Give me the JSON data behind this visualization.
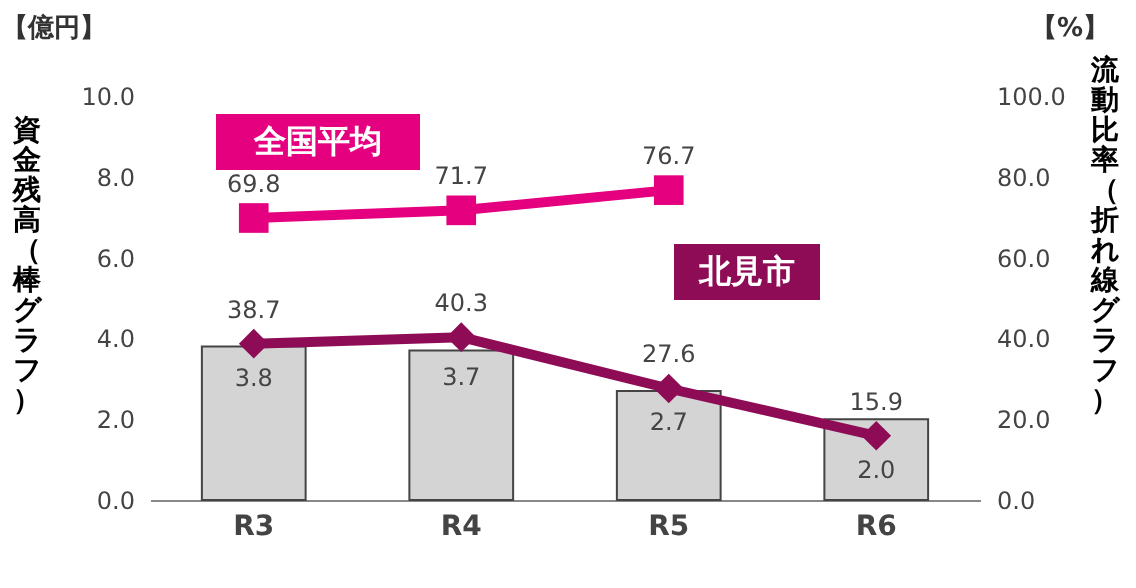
{
  "chart_data": {
    "type": "bar",
    "categories": [
      "R3",
      "R4",
      "R5",
      "R6"
    ],
    "ylabel": "資金残高（棒グラフ）",
    "y2label": "流動比率（折れ線グラフ）",
    "annotations": [
      "【億円】",
      "【%】"
    ],
    "values": [
      3.8,
      3.7,
      2.7,
      2.0
    ],
    "value_labels": [
      "3.8",
      "3.7",
      "2.7",
      "2.0"
    ],
    "color": "#d4d4d4",
    "data_labels": true,
    "ylim": [
      0,
      10
    ],
    "yticks": [
      {
        "value": 0,
        "label": "0.0"
      },
      {
        "value": 2,
        "label": "2.0"
      },
      {
        "value": 4,
        "label": "4.0"
      },
      {
        "value": 6,
        "label": "6.0"
      },
      {
        "value": 8,
        "label": "8.0"
      },
      {
        "value": 10,
        "label": "10.0"
      }
    ],
    "y2lim": [
      0,
      100
    ],
    "y2ticks": [
      {
        "value": 0,
        "label": "0.0"
      },
      {
        "value": 20,
        "label": "20.0"
      },
      {
        "value": 40,
        "label": "40.0"
      },
      {
        "value": 60,
        "label": "60.0"
      },
      {
        "value": 80,
        "label": "80.0"
      },
      {
        "value": 100,
        "label": "100.0"
      }
    ],
    "series": [
      {
        "name": "全国平均",
        "type": "line",
        "axis": "y2",
        "color": "#e4007f",
        "marker": "square",
        "values": [
          69.8,
          71.7,
          76.7,
          null
        ]
      },
      {
        "name": "北見市",
        "type": "line",
        "axis": "y2",
        "color": "#8e0b56",
        "marker": "diamond",
        "values": [
          38.7,
          40.3,
          27.6,
          15.9
        ]
      }
    ],
    "grid": false,
    "legend": false
  }
}
